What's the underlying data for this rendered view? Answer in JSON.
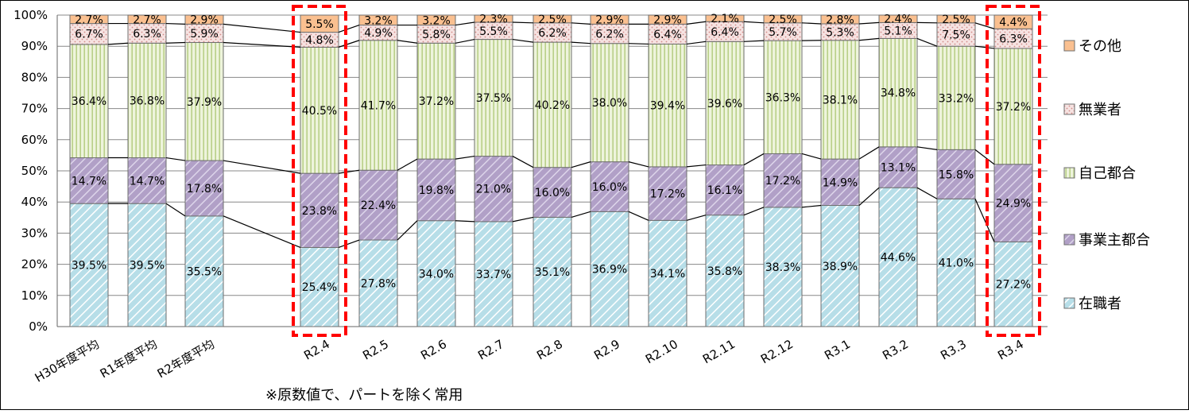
{
  "chart_data": {
    "type": "bar",
    "stacked": true,
    "normalized": true,
    "categories": [
      "H30年度平均",
      "R1年度平均",
      "R2年度平均",
      "R2.4",
      "R2.5",
      "R2.6",
      "R2.7",
      "R2.8",
      "R2.9",
      "R2.10",
      "R2.11",
      "R2.12",
      "R3.1",
      "R3.2",
      "R3.3",
      "R3.4"
    ],
    "highlighted": [
      "R2.4",
      "R3.4"
    ],
    "series": [
      {
        "name": "在職者",
        "color": "#b7dee8",
        "pattern": "diagonal-stripe",
        "values": [
          39.5,
          39.5,
          35.5,
          25.4,
          27.8,
          34.0,
          33.7,
          35.1,
          36.9,
          34.1,
          35.8,
          38.3,
          38.9,
          44.6,
          41.0,
          27.2
        ],
        "labels": [
          "39.5%",
          "39.5%",
          "35.5%",
          "25.4%",
          "27.8%",
          "34.0%",
          "33.7%",
          "35.1%",
          "36.9%",
          "34.1%",
          "35.8%",
          "38.3%",
          "38.9%",
          "44.6%",
          "41.0%",
          "27.2%"
        ]
      },
      {
        "name": "事業主都合",
        "color": "#b1a0c7",
        "pattern": "diagonal-stripe",
        "values": [
          14.7,
          14.7,
          17.8,
          23.8,
          22.4,
          19.8,
          21.0,
          16.0,
          16.0,
          17.2,
          16.1,
          17.2,
          14.9,
          13.1,
          15.8,
          24.9
        ],
        "labels": [
          "14.7%",
          "14.7%",
          "17.8%",
          "23.8%",
          "22.4%",
          "19.8%",
          "21.0%",
          "16.0%",
          "16.0%",
          "17.2%",
          "16.1%",
          "17.2%",
          "14.9%",
          "13.1%",
          "15.8%",
          "24.9%"
        ]
      },
      {
        "name": "自己都合",
        "color": "#d7e4bd",
        "pattern": "vertical-stripe",
        "values": [
          36.4,
          36.8,
          37.9,
          40.5,
          41.7,
          37.2,
          37.5,
          40.2,
          38.0,
          39.4,
          39.6,
          36.3,
          38.1,
          34.8,
          33.2,
          37.2
        ],
        "labels": [
          "36.4%",
          "36.8%",
          "37.9%",
          "40.5%",
          "41.7%",
          "37.2%",
          "37.5%",
          "40.2%",
          "38.0%",
          "39.4%",
          "39.6%",
          "36.3%",
          "38.1%",
          "34.8%",
          "33.2%",
          "37.2%"
        ]
      },
      {
        "name": "無業者",
        "color": "#f2dcdb",
        "pattern": "dots",
        "values": [
          6.7,
          6.3,
          5.9,
          4.8,
          4.9,
          5.8,
          5.5,
          6.2,
          6.2,
          6.4,
          6.4,
          5.7,
          5.3,
          5.1,
          7.5,
          6.3
        ],
        "labels": [
          "6.7%",
          "6.3%",
          "5.9%",
          "4.8%",
          "4.9%",
          "5.8%",
          "5.5%",
          "6.2%",
          "6.2%",
          "6.4%",
          "6.4%",
          "5.7%",
          "5.3%",
          "5.1%",
          "7.5%",
          "6.3%"
        ]
      },
      {
        "name": "その他",
        "color": "#fac090",
        "pattern": "solid",
        "values": [
          2.7,
          2.7,
          2.9,
          5.5,
          3.2,
          3.2,
          2.3,
          2.5,
          2.9,
          2.9,
          2.1,
          2.5,
          2.8,
          2.4,
          2.5,
          4.4
        ],
        "labels": [
          "2.7%",
          "2.7%",
          "2.9%",
          "5.5%",
          "3.2%",
          "3.2%",
          "2.3%",
          "2.5%",
          "2.9%",
          "2.9%",
          "2.1%",
          "2.5%",
          "2.8%",
          "2.4%",
          "2.5%",
          "4.4%"
        ]
      }
    ],
    "ylim": [
      0,
      100
    ],
    "yticks": [
      "0%",
      "10%",
      "20%",
      "30%",
      "40%",
      "50%",
      "60%",
      "70%",
      "80%",
      "90%",
      "100%"
    ],
    "grid": true,
    "legend": "right",
    "note": "※原数値で、パートを除く常用",
    "title": "",
    "xlabel": "",
    "ylabel": ""
  }
}
